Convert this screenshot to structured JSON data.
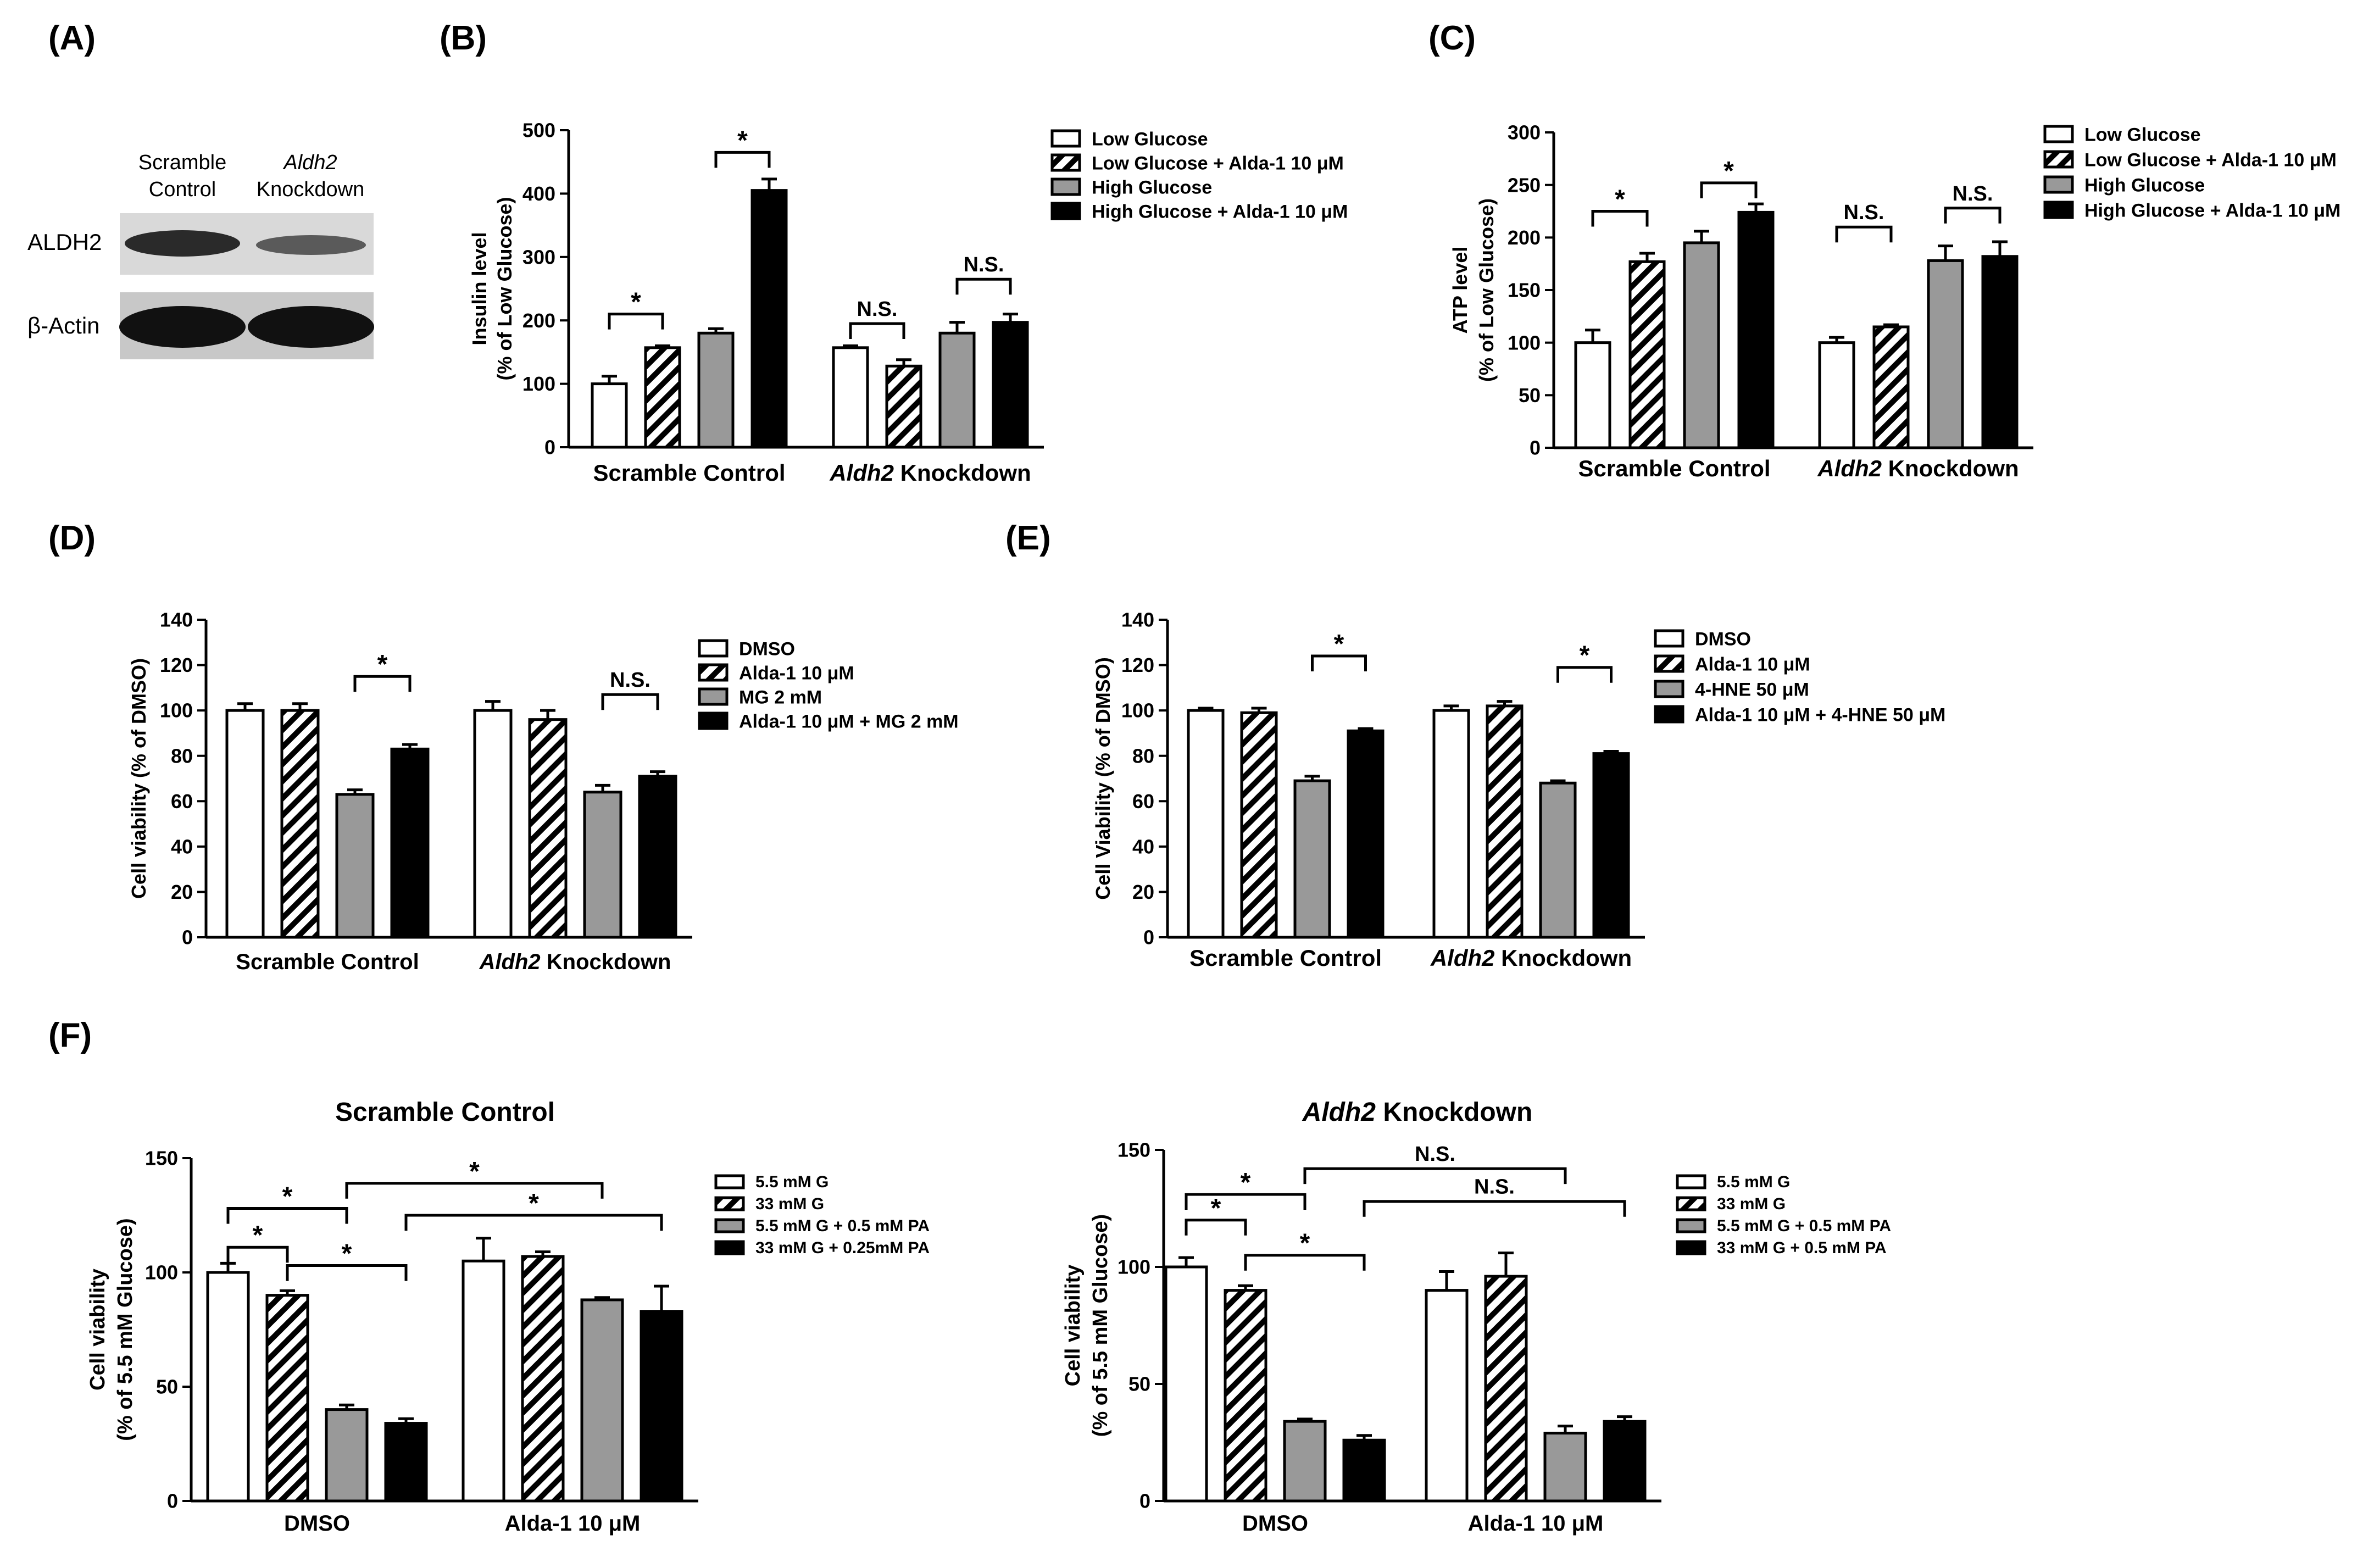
{
  "colors": {
    "white": "#ffffff",
    "gray": "#999999",
    "black": "#000000",
    "stroke": "#000000"
  },
  "panel_letters": [
    "(A)",
    "(B)",
    "(C)",
    "(D)",
    "(E)",
    "(F)"
  ],
  "blot": {
    "col1": [
      "Scramble",
      "Control"
    ],
    "col2": [
      "Aldh2",
      "Knockdown"
    ],
    "rows": [
      "ALDH2",
      "β-Actin"
    ]
  },
  "chart_data": [
    {
      "id": "B",
      "type": "bar",
      "title": "",
      "ylabel": [
        "Insulin level",
        "(% of Low Glucose)"
      ],
      "ylim": [
        0,
        500
      ],
      "yticks": [
        0,
        100,
        200,
        300,
        400,
        500
      ],
      "groups": [
        {
          "name": "Scramble Control",
          "italic": ""
        },
        {
          "name": " Knockdown",
          "italic": "Aldh2"
        }
      ],
      "series": [
        {
          "name": "Low Glucose",
          "style": "white",
          "values": [
            100,
            157
          ],
          "errors": [
            12,
            3
          ]
        },
        {
          "name": "Low Glucose + Alda-1 10 μM",
          "style": "hatch",
          "values": [
            157,
            128
          ],
          "errors": [
            3,
            10
          ]
        },
        {
          "name": "High Glucose",
          "style": "gray",
          "values": [
            180,
            180
          ],
          "errors": [
            7,
            17
          ]
        },
        {
          "name": "High Glucose + Alda-1 10 μM",
          "style": "black",
          "values": [
            405,
            197
          ],
          "errors": [
            18,
            13
          ]
        }
      ],
      "annotations": [
        {
          "text": "*",
          "group": 0,
          "bars": [
            0,
            1
          ],
          "y": 210
        },
        {
          "text": "*",
          "group": 0,
          "bars": [
            2,
            3
          ],
          "y": 465
        },
        {
          "text": "N.S.",
          "group": 1,
          "bars": [
            0,
            1
          ],
          "y": 195
        },
        {
          "text": "N.S.",
          "group": 1,
          "bars": [
            2,
            3
          ],
          "y": 265
        }
      ]
    },
    {
      "id": "C",
      "type": "bar",
      "title": "",
      "ylabel": [
        "ATP level",
        "(% of Low Glucose)"
      ],
      "ylim": [
        0,
        300
      ],
      "yticks": [
        0,
        50,
        100,
        150,
        200,
        250,
        300
      ],
      "groups": [
        {
          "name": "Scramble Control",
          "italic": ""
        },
        {
          "name": " Knockdown",
          "italic": "Aldh2"
        }
      ],
      "series": [
        {
          "name": "Low Glucose",
          "style": "white",
          "values": [
            100,
            100
          ],
          "errors": [
            12,
            5
          ]
        },
        {
          "name": "Low Glucose + Alda-1 10 μM",
          "style": "hatch",
          "values": [
            177,
            115
          ],
          "errors": [
            8,
            2
          ]
        },
        {
          "name": "High Glucose",
          "style": "gray",
          "values": [
            195,
            178
          ],
          "errors": [
            11,
            14
          ]
        },
        {
          "name": "High Glucose + Alda-1 10 μM",
          "style": "black",
          "values": [
            224,
            182
          ],
          "errors": [
            8,
            14
          ]
        }
      ],
      "annotations": [
        {
          "text": "*",
          "group": 0,
          "bars": [
            0,
            1
          ],
          "y": 225
        },
        {
          "text": "*",
          "group": 0,
          "bars": [
            2,
            3
          ],
          "y": 252
        },
        {
          "text": "N.S.",
          "group": 1,
          "bars": [
            0,
            1
          ],
          "y": 210
        },
        {
          "text": "N.S.",
          "group": 1,
          "bars": [
            2,
            3
          ],
          "y": 228
        }
      ]
    },
    {
      "id": "D",
      "type": "bar",
      "title": "",
      "ylabel": [
        "Cell viability (% of DMSO)"
      ],
      "ylim": [
        0,
        140
      ],
      "yticks": [
        0,
        20,
        40,
        60,
        80,
        100,
        120,
        140
      ],
      "groups": [
        {
          "name": "Scramble Control",
          "italic": ""
        },
        {
          "name": " Knockdown",
          "italic": "Aldh2"
        }
      ],
      "series": [
        {
          "name": "DMSO",
          "style": "white",
          "values": [
            100,
            100
          ],
          "errors": [
            3,
            4
          ]
        },
        {
          "name": "Alda-1 10 μM",
          "style": "hatch",
          "values": [
            100,
            96
          ],
          "errors": [
            3,
            4
          ]
        },
        {
          "name": "MG 2 mM",
          "style": "gray",
          "values": [
            63,
            64
          ],
          "errors": [
            2,
            3
          ]
        },
        {
          "name": "Alda-1 10 μM + MG 2 mM",
          "style": "black",
          "values": [
            83,
            71
          ],
          "errors": [
            2,
            2
          ]
        }
      ],
      "annotations": [
        {
          "text": "*",
          "group": 0,
          "bars": [
            2,
            3
          ],
          "y": 115
        },
        {
          "text": "N.S.",
          "group": 1,
          "bars": [
            2,
            3
          ],
          "y": 107
        }
      ]
    },
    {
      "id": "E",
      "type": "bar",
      "title": "",
      "ylabel": [
        "Cell Viability (% of DMSO)"
      ],
      "ylim": [
        0,
        140
      ],
      "yticks": [
        0,
        20,
        40,
        60,
        80,
        100,
        120,
        140
      ],
      "groups": [
        {
          "name": "Scramble Control",
          "italic": ""
        },
        {
          "name": " Knockdown",
          "italic": "Aldh2"
        }
      ],
      "series": [
        {
          "name": "DMSO",
          "style": "white",
          "values": [
            100,
            100
          ],
          "errors": [
            1,
            2
          ]
        },
        {
          "name": "Alda-1 10 μM",
          "style": "hatch",
          "values": [
            99,
            102
          ],
          "errors": [
            2,
            2
          ]
        },
        {
          "name": "4-HNE 50 μM",
          "style": "gray",
          "values": [
            69,
            68
          ],
          "errors": [
            2,
            1
          ]
        },
        {
          "name": "Alda-1 10 μM + 4-HNE 50 μM",
          "style": "black",
          "values": [
            91,
            81
          ],
          "errors": [
            1,
            1
          ]
        }
      ],
      "annotations": [
        {
          "text": "*",
          "group": 0,
          "bars": [
            2,
            3
          ],
          "y": 124
        },
        {
          "text": "*",
          "group": 1,
          "bars": [
            2,
            3
          ],
          "y": 119
        }
      ]
    },
    {
      "id": "F1",
      "type": "bar",
      "title": "Scramble Control",
      "title_italic": "",
      "ylabel": [
        "Cell viability",
        "(% of 5.5 mM Glucose)"
      ],
      "ylim": [
        0,
        150
      ],
      "yticks": [
        0,
        50,
        100,
        150
      ],
      "groups": [
        {
          "name": "DMSO",
          "italic": ""
        },
        {
          "name": "Alda-1 10 μM",
          "italic": ""
        }
      ],
      "series": [
        {
          "name": "5.5 mM G",
          "style": "white",
          "values": [
            100,
            105
          ],
          "errors": [
            4,
            10
          ]
        },
        {
          "name": "33 mM G",
          "style": "hatch",
          "values": [
            90,
            107
          ],
          "errors": [
            2,
            2
          ]
        },
        {
          "name": "5.5 mM G + 0.5 mM PA",
          "style": "gray",
          "values": [
            40,
            88
          ],
          "errors": [
            2,
            1
          ]
        },
        {
          "name": "33 mM G + 0.25mM PA",
          "style": "black",
          "values": [
            34,
            83
          ],
          "errors": [
            2,
            11
          ]
        }
      ],
      "annotations": [
        {
          "text": "*",
          "from": [
            0,
            0
          ],
          "to": [
            0,
            1
          ],
          "y": 111
        },
        {
          "text": "*",
          "from": [
            0,
            1
          ],
          "to": [
            0,
            3
          ],
          "y": 103
        },
        {
          "text": "*",
          "from": [
            0,
            0
          ],
          "to": [
            0,
            2
          ],
          "y": 128
        },
        {
          "text": "*",
          "from": [
            0,
            2
          ],
          "to": [
            1,
            2
          ],
          "y": 139
        },
        {
          "text": "*",
          "from": [
            0,
            3
          ],
          "to": [
            1,
            3
          ],
          "y": 125
        }
      ]
    },
    {
      "id": "F2",
      "type": "bar",
      "title": " Knockdown",
      "title_italic": "Aldh2",
      "ylabel": [
        "Cell viability",
        "(% of 5.5 mM Glucose)"
      ],
      "ylim": [
        0,
        150
      ],
      "yticks": [
        0,
        50,
        100,
        150
      ],
      "groups": [
        {
          "name": "DMSO",
          "italic": ""
        },
        {
          "name": "Alda-1 10 μM",
          "italic": ""
        }
      ],
      "series": [
        {
          "name": "5.5 mM G",
          "style": "white",
          "values": [
            100,
            90
          ],
          "errors": [
            4,
            8
          ]
        },
        {
          "name": "33 mM G",
          "style": "hatch",
          "values": [
            90,
            96
          ],
          "errors": [
            2,
            10
          ]
        },
        {
          "name": "5.5 mM G + 0.5 mM PA",
          "style": "gray",
          "values": [
            34,
            29
          ],
          "errors": [
            1,
            3
          ]
        },
        {
          "name": "33 mM G + 0.5 mM PA",
          "style": "black",
          "values": [
            26,
            34
          ],
          "errors": [
            2,
            2
          ]
        }
      ],
      "annotations": [
        {
          "text": "*",
          "from": [
            0,
            0
          ],
          "to": [
            0,
            1
          ],
          "y": 120
        },
        {
          "text": "*",
          "from": [
            0,
            1
          ],
          "to": [
            0,
            3
          ],
          "y": 105
        },
        {
          "text": "*",
          "from": [
            0,
            0
          ],
          "to": [
            0,
            2
          ],
          "y": 131
        },
        {
          "text": "N.S.",
          "from": [
            0,
            2
          ],
          "to": [
            1,
            2
          ],
          "y": 142
        },
        {
          "text": "N.S.",
          "from": [
            0,
            3
          ],
          "to": [
            1,
            3
          ],
          "y": 128
        }
      ]
    }
  ]
}
